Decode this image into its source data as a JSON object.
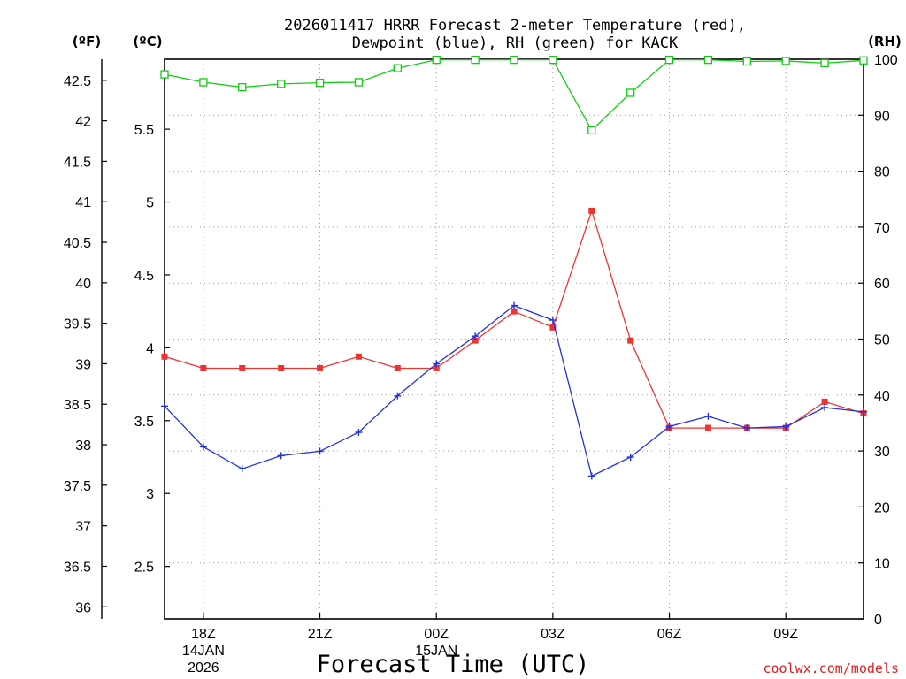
{
  "chart_title_line1": "2026011417 HRRR Forecast 2-meter Temperature (red),",
  "chart_title_line2": "Dewpoint (blue), RH (green) for KACK",
  "credit": "coolwx.com/models",
  "colors": {
    "temperature": "#ee3333",
    "dewpoint": "#2233dd",
    "rh": "#11cc11",
    "credit": "#dd2222"
  },
  "chart_data": {
    "type": "line",
    "xlabel": "Forecast Time (UTC)",
    "x_hours": [
      0,
      1,
      2,
      3,
      4,
      5,
      6,
      7,
      8,
      9,
      10,
      11,
      12,
      13,
      14,
      15,
      16,
      17,
      18
    ],
    "x_range": [
      0,
      18
    ],
    "x_ticks": [
      {
        "hour": 1,
        "lines": [
          "18Z",
          "14JAN",
          "2026"
        ]
      },
      {
        "hour": 4,
        "lines": [
          "21Z"
        ]
      },
      {
        "hour": 7,
        "lines": [
          "00Z",
          "15JAN"
        ]
      },
      {
        "hour": 10,
        "lines": [
          "03Z"
        ]
      },
      {
        "hour": 13,
        "lines": [
          "06Z"
        ]
      },
      {
        "hour": 16,
        "lines": [
          "09Z"
        ]
      }
    ],
    "axes": {
      "fahrenheit": {
        "unit_label": "(ºF)",
        "range": [
          35.85,
          42.76
        ],
        "ticks": [
          "36",
          "36.5",
          "37",
          "37.5",
          "38",
          "38.5",
          "39",
          "39.5",
          "40",
          "40.5",
          "41",
          "41.5",
          "42",
          "42.5"
        ]
      },
      "celsius": {
        "unit_label": "(ºC)",
        "range": [
          2.14,
          5.98
        ],
        "ticks": [
          "2.5",
          "3",
          "3.5",
          "4",
          "4.5",
          "5",
          "5.5"
        ]
      },
      "rh": {
        "unit_label": "(RH)",
        "range": [
          0,
          100
        ],
        "ticks": [
          "0",
          "10",
          "20",
          "30",
          "40",
          "50",
          "60",
          "70",
          "80",
          "90",
          "100"
        ]
      }
    },
    "series": [
      {
        "name": "Temperature",
        "unit": "C",
        "marker": "square-filled",
        "values": [
          3.94,
          3.86,
          3.86,
          3.86,
          3.86,
          3.94,
          3.86,
          3.86,
          4.05,
          4.25,
          4.14,
          4.94,
          4.05,
          3.45,
          3.45,
          3.45,
          3.45,
          3.63,
          3.55
        ]
      },
      {
        "name": "Dewpoint",
        "unit": "C",
        "marker": "plus",
        "values": [
          3.6,
          3.32,
          3.17,
          3.26,
          3.29,
          3.42,
          3.67,
          3.89,
          4.08,
          4.29,
          4.19,
          3.12,
          3.25,
          3.46,
          3.53,
          3.45,
          3.46,
          3.59,
          3.56
        ]
      },
      {
        "name": "RH",
        "unit": "%",
        "marker": "square-open",
        "values": [
          97.3,
          95.9,
          95.0,
          95.6,
          95.8,
          95.9,
          98.4,
          99.9,
          99.9,
          99.9,
          99.9,
          87.3,
          94.0,
          99.9,
          99.9,
          99.6,
          99.7,
          99.3,
          99.8
        ]
      }
    ]
  }
}
